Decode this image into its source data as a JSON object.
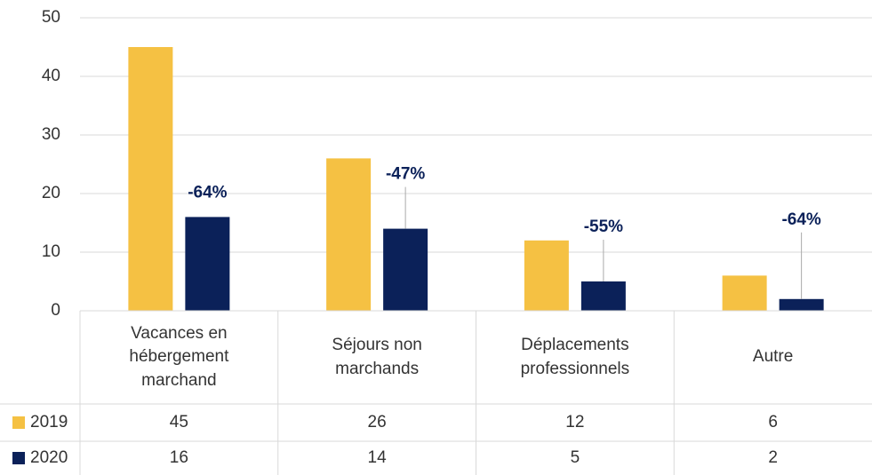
{
  "chart_data": {
    "type": "bar",
    "categories": [
      "Vacances en hébergement marchand",
      "Séjours non marchands",
      "Déplacements professionnels",
      "Autre"
    ],
    "series": [
      {
        "name": "2019",
        "color": "#f5c143",
        "values": [
          45,
          26,
          12,
          6
        ]
      },
      {
        "name": "2020",
        "color": "#0b2159",
        "values": [
          16,
          14,
          5,
          2
        ]
      }
    ],
    "annotations": [
      "-64%",
      "-47%",
      "-55%",
      "-64%"
    ],
    "ylim": [
      0,
      50
    ],
    "yticks": [
      0,
      10,
      20,
      30,
      40,
      50
    ],
    "grid": true,
    "data_table": true
  }
}
